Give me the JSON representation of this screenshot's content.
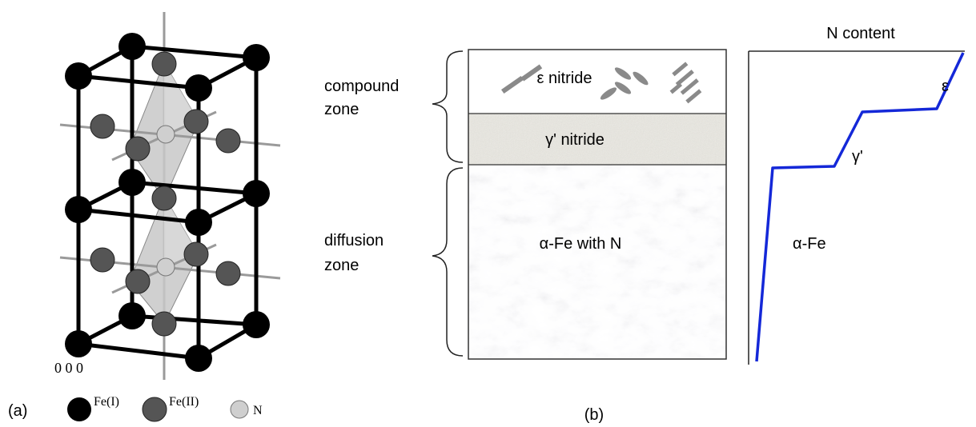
{
  "panel_a": {
    "label": "(a)",
    "origin_label": "0 0 0",
    "legend": [
      {
        "label": "Fe(I)",
        "color": "#000000"
      },
      {
        "label": "Fe(II)",
        "color": "#555555"
      },
      {
        "label": "N",
        "color": "#cfcfcf"
      }
    ]
  },
  "panel_b": {
    "label": "(b)",
    "zones": [
      {
        "label_line1": "compound",
        "label_line2": "zone"
      },
      {
        "label_line1": "diffusion",
        "label_line2": "zone"
      }
    ],
    "layers": [
      {
        "label": "ε nitride"
      },
      {
        "label": "γ' nitride"
      },
      {
        "label": "α-Fe with N"
      }
    ],
    "profile": {
      "title": "N content",
      "phase_labels": [
        "ε",
        "γ'",
        "α-Fe"
      ],
      "line_color": "#1428d8"
    }
  }
}
